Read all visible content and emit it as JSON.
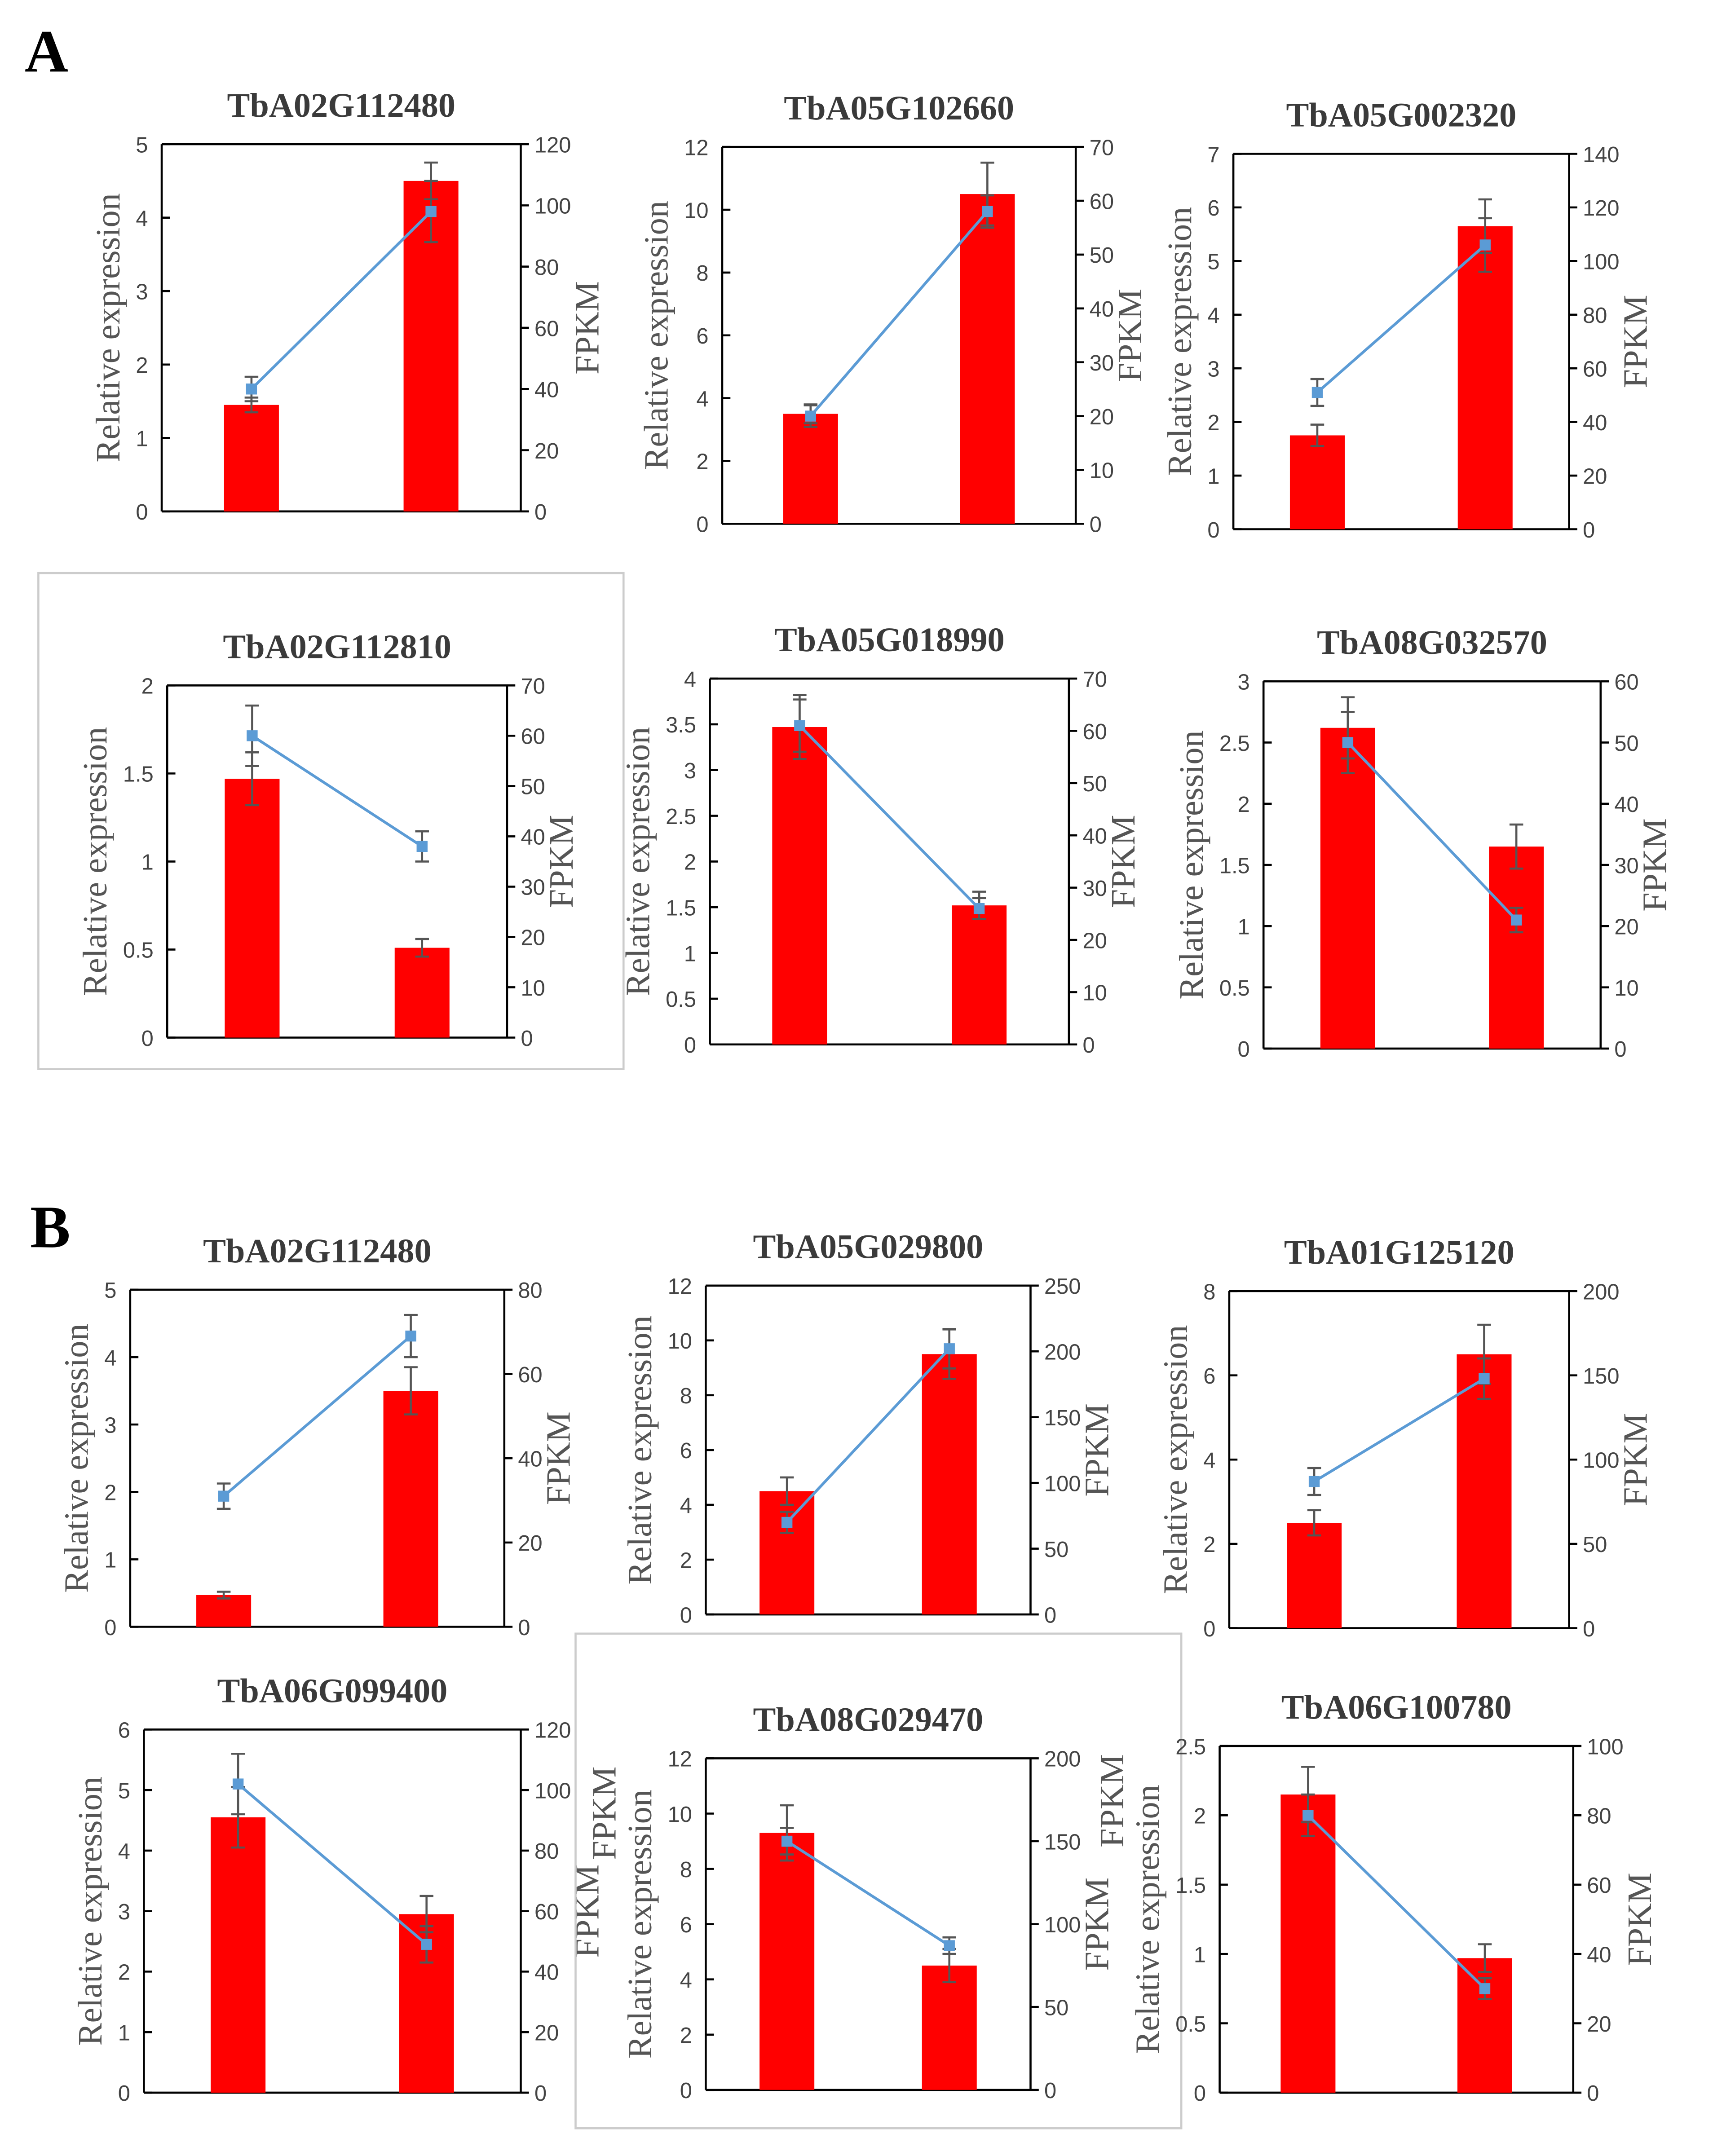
{
  "panels": [
    "A",
    "B"
  ],
  "colors": {
    "bar": "#ff0000",
    "line": "#5b9bd5",
    "axis": "#000000",
    "error": "#555555"
  },
  "chart_data": [
    {
      "type": "bar+line",
      "panel": "A",
      "title": "TbA02G112480",
      "ylabel": "Relative expression",
      "y2label": "FPKM",
      "ylim": [
        0,
        5
      ],
      "ystep": 1,
      "y2lim": [
        0,
        120
      ],
      "y2step": 20,
      "bars": [
        1.45,
        4.5
      ],
      "bar_err": [
        0.1,
        0.25
      ],
      "fpkm": [
        40,
        98
      ],
      "fpkm_err": [
        4,
        10
      ]
    },
    {
      "type": "bar+line",
      "panel": "A",
      "title": "TbA05G102660",
      "ylabel": "Relative expression",
      "y2label": "FPKM",
      "ylim": [
        0,
        12
      ],
      "ystep": 2,
      "y2lim": [
        0,
        70
      ],
      "y2step": 10,
      "bars": [
        3.5,
        10.5
      ],
      "bar_err": [
        0.3,
        1.0
      ],
      "fpkm": [
        20,
        58
      ],
      "fpkm_err": [
        2,
        3
      ]
    },
    {
      "type": "bar+line",
      "panel": "A",
      "title": "TbA05G002320",
      "ylabel": "Relative expression",
      "y2label": "FPKM",
      "ylim": [
        0,
        7
      ],
      "ystep": 1,
      "y2lim": [
        0,
        140
      ],
      "y2step": 20,
      "bars": [
        1.75,
        5.65
      ],
      "bar_err": [
        0.2,
        0.5
      ],
      "fpkm": [
        51,
        106
      ],
      "fpkm_err": [
        5,
        10
      ]
    },
    {
      "type": "bar+line",
      "panel": "A",
      "title": "TbA02G112810",
      "ylabel": "Relative expression",
      "y2label": "FPKM",
      "ylim": [
        0,
        2
      ],
      "ystep": 0.5,
      "y2lim": [
        0,
        70
      ],
      "y2step": 10,
      "bars": [
        1.47,
        0.51
      ],
      "bar_err": [
        0.15,
        0.05
      ],
      "fpkm": [
        60,
        38
      ],
      "fpkm_err": [
        6,
        3
      ],
      "framed": true
    },
    {
      "type": "bar+line",
      "panel": "A",
      "title": "TbA05G018990",
      "ylabel": "Relative expression",
      "y2label": "FPKM",
      "ylim": [
        0,
        4
      ],
      "ystep": 0.5,
      "y2lim": [
        0,
        70
      ],
      "y2step": 10,
      "bars": [
        3.47,
        1.52
      ],
      "bar_err": [
        0.35,
        0.15
      ],
      "fpkm": [
        61,
        26
      ],
      "fpkm_err": [
        5,
        2
      ]
    },
    {
      "type": "bar+line",
      "panel": "A",
      "title": "TbA08G032570",
      "ylabel": "Relative expression",
      "y2label": "FPKM",
      "ylim": [
        0,
        3
      ],
      "ystep": 0.5,
      "y2lim": [
        0,
        60
      ],
      "y2step": 10,
      "bars": [
        2.62,
        1.65
      ],
      "bar_err": [
        0.25,
        0.18
      ],
      "fpkm": [
        50,
        21
      ],
      "fpkm_err": [
        5,
        2
      ]
    },
    {
      "type": "bar+line",
      "panel": "B",
      "title": "TbA02G112480",
      "ylabel": "Relative expression",
      "y2label": "FPKM",
      "ylim": [
        0,
        5
      ],
      "ystep": 1,
      "y2lim": [
        0,
        80
      ],
      "y2step": 20,
      "bars": [
        0.47,
        3.5
      ],
      "bar_err": [
        0.05,
        0.35
      ],
      "fpkm": [
        31,
        69
      ],
      "fpkm_err": [
        3,
        5
      ]
    },
    {
      "type": "bar+line",
      "panel": "B",
      "title": "TbA05G029800",
      "ylabel": "Relative expression",
      "y2label": "FPKM",
      "ylim": [
        0,
        12
      ],
      "ystep": 2,
      "y2lim": [
        0,
        250
      ],
      "y2step": 50,
      "bars": [
        4.5,
        9.5
      ],
      "bar_err": [
        0.5,
        0.9
      ],
      "fpkm": [
        70,
        202
      ],
      "fpkm_err": [
        8,
        15
      ]
    },
    {
      "type": "bar+line",
      "panel": "B",
      "title": "TbA01G125120",
      "ylabel": "Relative expression",
      "y2label": "FPKM",
      "ylim": [
        0,
        8
      ],
      "ystep": 2,
      "y2lim": [
        0,
        200
      ],
      "y2step": 50,
      "bars": [
        2.5,
        6.5
      ],
      "bar_err": [
        0.3,
        0.7
      ],
      "fpkm": [
        87,
        148
      ],
      "fpkm_err": [
        8,
        12
      ]
    },
    {
      "type": "bar+line",
      "panel": "B",
      "title": "TbA06G099400",
      "ylabel": "Relative expression",
      "y2label": "FPKM",
      "ylim": [
        0,
        6
      ],
      "ystep": 1,
      "y2lim": [
        0,
        120
      ],
      "y2step": 20,
      "bars": [
        4.55,
        2.95
      ],
      "bar_err": [
        0.5,
        0.3
      ],
      "fpkm": [
        102,
        49
      ],
      "fpkm_err": [
        10,
        6
      ]
    },
    {
      "type": "bar+line",
      "panel": "B",
      "title": "TbA08G029470",
      "ylabel": "Relative expression",
      "y2label": "FPKM",
      "stray_label": "FPKM",
      "ylim": [
        0,
        12
      ],
      "ystep": 2,
      "y2lim": [
        0,
        200
      ],
      "y2step": 50,
      "bars": [
        9.3,
        4.5
      ],
      "bar_err": [
        1.0,
        0.6
      ],
      "fpkm": [
        150,
        87
      ],
      "fpkm_err": [
        8,
        5
      ],
      "framed": true
    },
    {
      "type": "bar+line",
      "panel": "B",
      "title": "TbA06G100780",
      "ylabel": "Relative expression",
      "y2label": "FPKM",
      "stray_label": "FPKM",
      "ylim": [
        0,
        2.5
      ],
      "ystep": 0.5,
      "y2lim": [
        0,
        100
      ],
      "y2step": 20,
      "bars": [
        2.15,
        0.97
      ],
      "bar_err": [
        0.2,
        0.1
      ],
      "fpkm": [
        80,
        30
      ],
      "fpkm_err": [
        6,
        3
      ]
    }
  ]
}
